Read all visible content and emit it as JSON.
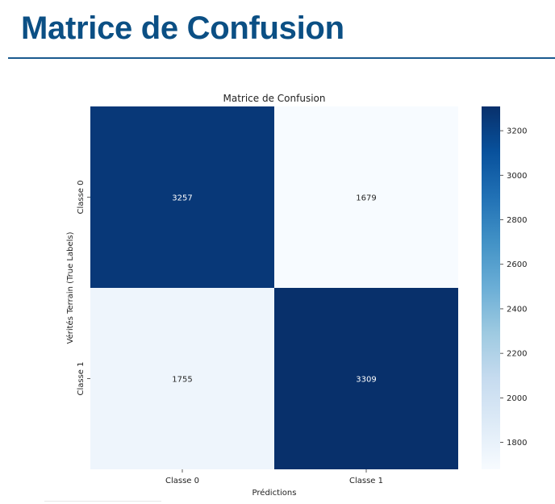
{
  "slide": {
    "title": "Matrice de Confusion",
    "title_color": "#0b4f84",
    "rule_color": "#1a5a8f"
  },
  "chart_data": {
    "type": "heatmap",
    "title": "Matrice de Confusion",
    "xlabel": "Prédictions",
    "ylabel": "Vérités Terrain (True Labels)",
    "x_categories": [
      "Classe 0",
      "Classe 1"
    ],
    "y_categories": [
      "Classe 0",
      "Classe 1"
    ],
    "values": [
      [
        3257,
        1679
      ],
      [
        1755,
        3309
      ]
    ],
    "colormap": "Blues",
    "colorbar": {
      "min": 1679,
      "max": 3309,
      "ticks": [
        1800,
        2000,
        2200,
        2400,
        2600,
        2800,
        3000,
        3200
      ]
    }
  }
}
